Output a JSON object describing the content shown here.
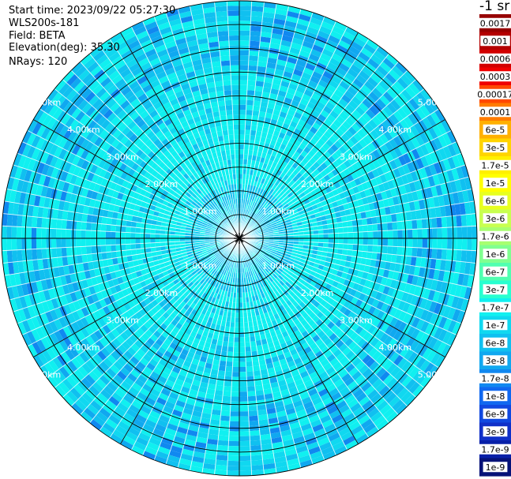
{
  "header": {
    "start_time": "Start time: 2023/09/22 05:27:30",
    "site": "WLS200s-181",
    "field": "Field: BETA",
    "elevation": "Elevation(deg): 35.30",
    "nrays": "NRays: 120"
  },
  "chart_data": {
    "type": "heatmap",
    "subtype": "polar-ppi",
    "title": "",
    "field": "BETA",
    "n_rays": 120,
    "range_rings_km": [
      1,
      2,
      3,
      4,
      5
    ],
    "range_labels": [
      "1.00km",
      "2.00km",
      "3.00km",
      "4.00km",
      "5.00km"
    ],
    "radial_spokes_deg": [
      0,
      30,
      60,
      90,
      120,
      150,
      180,
      210,
      240,
      270,
      300,
      330
    ],
    "max_range_km": 5.0,
    "colorbar": {
      "title": "-1 sr",
      "labels": [
        "0.0017",
        "0.001",
        "0.0006",
        "0.0003",
        "0.00017",
        "0.0001",
        "6e-5",
        "3e-5",
        "1.7e-5",
        "1e-5",
        "6e-6",
        "3e-6",
        "1.7e-6",
        "1e-6",
        "6e-7",
        "3e-7",
        "1.7e-7",
        "1e-7",
        "6e-8",
        "3e-8",
        "1.7e-8",
        "1e-8",
        "6e-9",
        "3e-9",
        "1.7e-9",
        "1e-9"
      ],
      "colors": [
        "#960000",
        "#b40000",
        "#d20000",
        "#f00000",
        "#ff4800",
        "#ff7c00",
        "#ffb000",
        "#ffd400",
        "#fff000",
        "#ffff00",
        "#e8ff20",
        "#c8ff50",
        "#a8ff70",
        "#80ff90",
        "#50ffb0",
        "#28ffd0",
        "#10f0f0",
        "#10d8f0",
        "#10c0f0",
        "#10a8f0",
        "#1088f0",
        "#1068f0",
        "#1048e0",
        "#1030c8",
        "#0820a8",
        "#061278"
      ]
    }
  }
}
